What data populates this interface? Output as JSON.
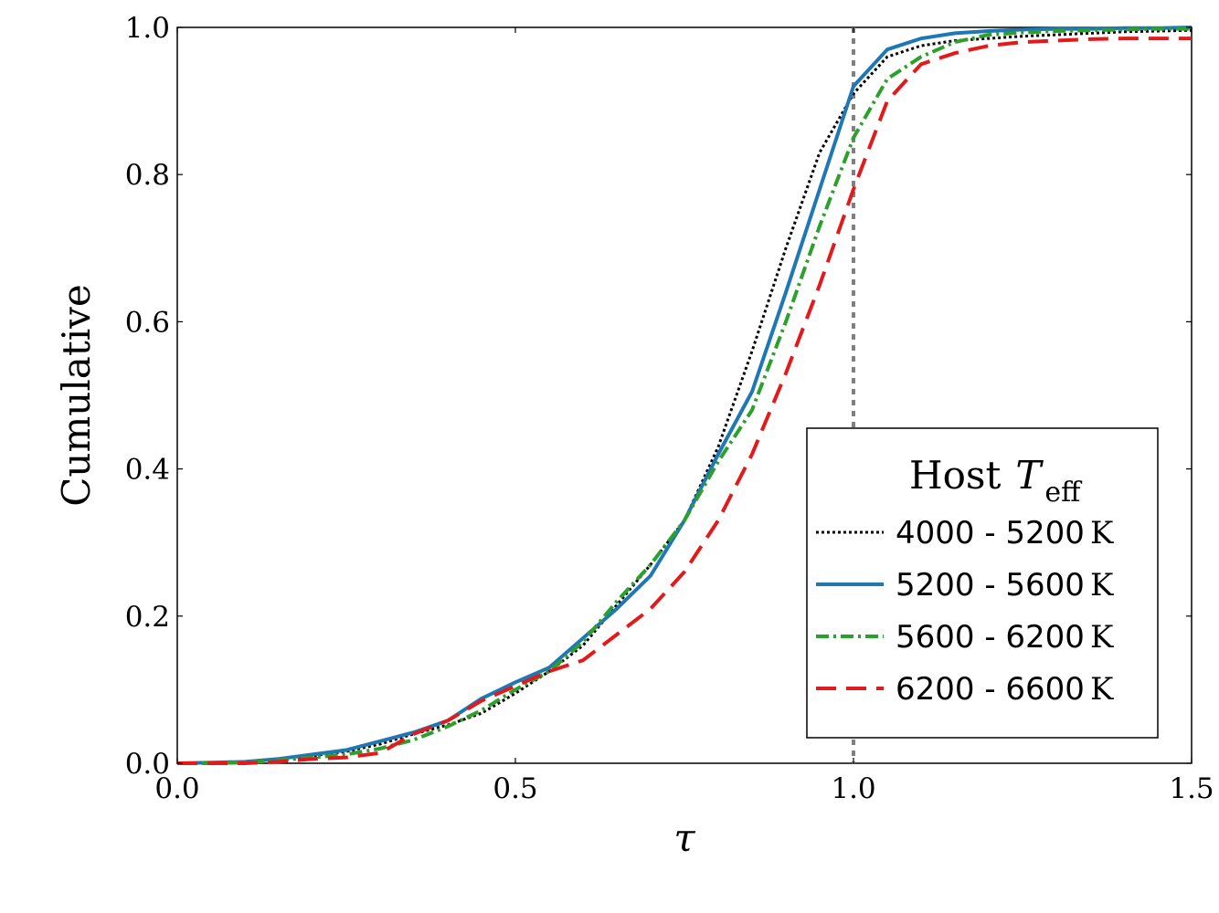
{
  "chart_data": {
    "type": "line",
    "xlabel": "τ",
    "ylabel": "Cumulative",
    "xlim": [
      0.0,
      1.5
    ],
    "ylim": [
      0.0,
      1.0
    ],
    "xticks": [
      "0.0",
      "0.5",
      "1.0",
      "1.5"
    ],
    "yticks": [
      "0.0",
      "0.2",
      "0.4",
      "0.6",
      "0.8",
      "1.0"
    ],
    "grid": false,
    "legend_position": "lower-right",
    "legend_title": {
      "main": "Host",
      "symbol": "T",
      "subscript": "eff"
    },
    "reference_line": {
      "x": 1.0,
      "color": "#808080",
      "style": "dotted"
    },
    "series": [
      {
        "name": "4000 - 5200",
        "unit": "K",
        "color": "#000000",
        "style": "dotted",
        "x": [
          0,
          0.05,
          0.1,
          0.15,
          0.2,
          0.25,
          0.3,
          0.35,
          0.4,
          0.45,
          0.5,
          0.55,
          0.6,
          0.65,
          0.7,
          0.75,
          0.8,
          0.85,
          0.9,
          0.95,
          1.0,
          1.05,
          1.1,
          1.15,
          1.2,
          1.25,
          1.3,
          1.35,
          1.4,
          1.45,
          1.5
        ],
        "y": [
          0,
          0,
          0.002,
          0.006,
          0.01,
          0.016,
          0.026,
          0.04,
          0.052,
          0.068,
          0.095,
          0.125,
          0.16,
          0.215,
          0.27,
          0.33,
          0.43,
          0.56,
          0.7,
          0.83,
          0.91,
          0.96,
          0.975,
          0.982,
          0.985,
          0.988,
          0.99,
          0.992,
          0.994,
          0.995,
          0.996
        ]
      },
      {
        "name": "5200 - 5600",
        "unit": "K",
        "color": "#1f77b4",
        "style": "solid",
        "x": [
          0,
          0.05,
          0.1,
          0.15,
          0.2,
          0.25,
          0.3,
          0.35,
          0.4,
          0.45,
          0.5,
          0.55,
          0.6,
          0.65,
          0.7,
          0.75,
          0.8,
          0.85,
          0.9,
          0.95,
          1.0,
          1.05,
          1.1,
          1.15,
          1.2,
          1.25,
          1.3,
          1.35,
          1.4,
          1.45,
          1.5
        ],
        "y": [
          0,
          0.001,
          0.002,
          0.006,
          0.012,
          0.018,
          0.03,
          0.042,
          0.058,
          0.088,
          0.11,
          0.13,
          0.17,
          0.21,
          0.255,
          0.33,
          0.42,
          0.505,
          0.64,
          0.78,
          0.92,
          0.97,
          0.985,
          0.992,
          0.995,
          0.997,
          0.998,
          0.998,
          0.999,
          0.999,
          1.0
        ]
      },
      {
        "name": "5600 - 6200",
        "unit": "K",
        "color": "#2ca02c",
        "style": "dashdot",
        "x": [
          0,
          0.05,
          0.1,
          0.15,
          0.2,
          0.25,
          0.3,
          0.35,
          0.4,
          0.45,
          0.5,
          0.55,
          0.6,
          0.65,
          0.7,
          0.75,
          0.8,
          0.85,
          0.9,
          0.95,
          1.0,
          1.05,
          1.1,
          1.15,
          1.2,
          1.25,
          1.3,
          1.35,
          1.4,
          1.45,
          1.5
        ],
        "y": [
          0,
          0,
          0.001,
          0.004,
          0.008,
          0.012,
          0.02,
          0.032,
          0.05,
          0.072,
          0.1,
          0.125,
          0.165,
          0.22,
          0.27,
          0.33,
          0.41,
          0.48,
          0.6,
          0.73,
          0.85,
          0.93,
          0.96,
          0.98,
          0.99,
          0.993,
          0.995,
          0.996,
          0.997,
          0.998,
          0.998
        ]
      },
      {
        "name": "6200 - 6600",
        "unit": "K",
        "color": "#e31a1c",
        "style": "dashed",
        "x": [
          0,
          0.05,
          0.1,
          0.15,
          0.2,
          0.25,
          0.3,
          0.35,
          0.4,
          0.45,
          0.5,
          0.55,
          0.6,
          0.65,
          0.7,
          0.75,
          0.8,
          0.85,
          0.9,
          0.95,
          1.0,
          1.05,
          1.1,
          1.15,
          1.2,
          1.25,
          1.3,
          1.35,
          1.4,
          1.45,
          1.5
        ],
        "y": [
          0,
          0,
          0,
          0.002,
          0.006,
          0.008,
          0.014,
          0.04,
          0.058,
          0.085,
          0.105,
          0.125,
          0.14,
          0.175,
          0.21,
          0.26,
          0.33,
          0.42,
          0.53,
          0.65,
          0.78,
          0.9,
          0.95,
          0.965,
          0.975,
          0.98,
          0.982,
          0.984,
          0.985,
          0.985,
          0.985
        ]
      }
    ]
  }
}
